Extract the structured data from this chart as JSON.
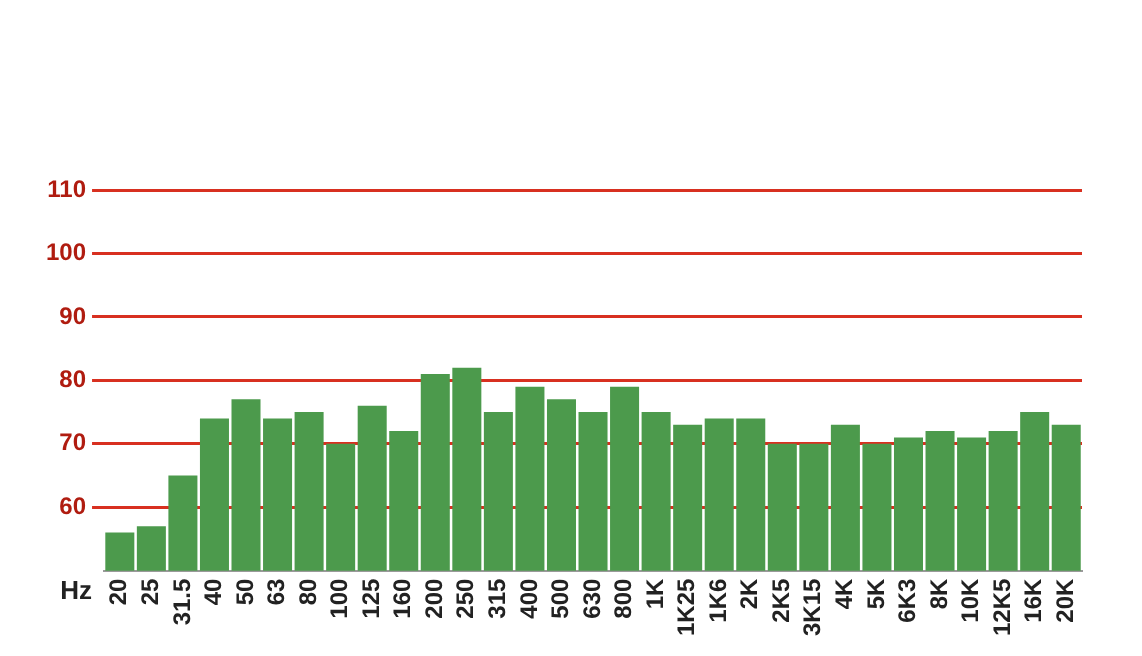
{
  "chart_data": {
    "type": "bar",
    "xlabel": "Hz",
    "categories": [
      "20",
      "25",
      "31.5",
      "40",
      "50",
      "63",
      "80",
      "100",
      "125",
      "160",
      "200",
      "250",
      "315",
      "400",
      "500",
      "630",
      "800",
      "1K",
      "1K25",
      "1K6",
      "2K",
      "2K5",
      "3K15",
      "4K",
      "5K",
      "6K3",
      "8K",
      "10K",
      "12K5",
      "16K",
      "20K"
    ],
    "values": [
      56,
      57,
      65,
      74,
      77,
      74,
      75,
      70,
      76,
      72,
      81,
      82,
      75,
      79,
      77,
      75,
      79,
      75,
      73,
      74,
      74,
      70,
      70,
      73,
      70,
      71,
      72,
      71,
      72,
      75,
      73
    ],
    "color": "#4c9a4c",
    "ylim": [
      50,
      110
    ],
    "yticks": [
      60,
      70,
      80,
      90,
      100,
      110
    ],
    "grid": "y"
  }
}
